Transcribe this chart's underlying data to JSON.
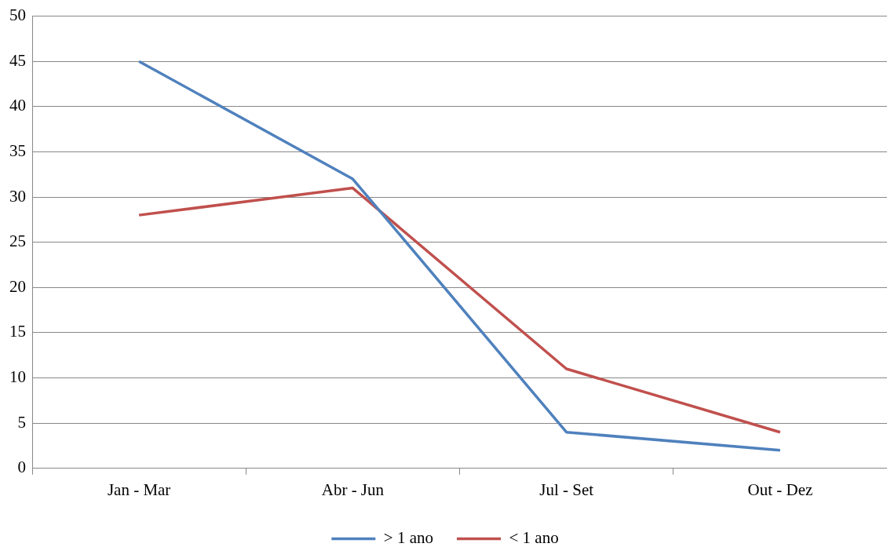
{
  "chart_data": {
    "type": "line",
    "categories": [
      "Jan - Mar",
      "Abr - Jun",
      "Jul - Set",
      "Out - Dez"
    ],
    "series": [
      {
        "name": "> 1 ano",
        "color": "#4f81bd",
        "values": [
          45,
          32,
          4,
          2
        ]
      },
      {
        "name": "< 1 ano",
        "color": "#c0504d",
        "values": [
          28,
          31,
          11,
          4
        ]
      }
    ],
    "ylim": [
      0,
      50
    ],
    "yticks": [
      0,
      5,
      10,
      15,
      20,
      25,
      30,
      35,
      40,
      45,
      50
    ],
    "grid": "y",
    "legend": "bottom",
    "marker": "none",
    "line_style": "solid"
  }
}
